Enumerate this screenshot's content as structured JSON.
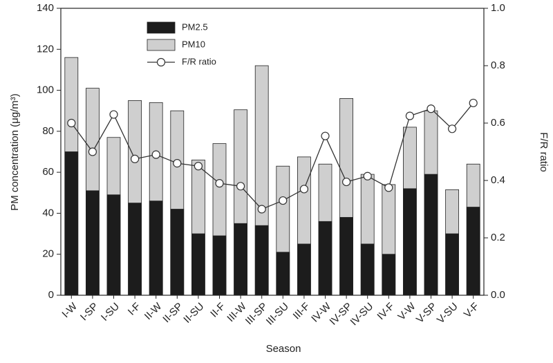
{
  "chart_data": {
    "type": "bar",
    "x_label": "Season",
    "y_label": "PM concentration (μg/m³)",
    "y2_label": "F/R ratio",
    "categories": [
      "I-W",
      "I-SP",
      "I-SU",
      "I-F",
      "II-W",
      "II-SP",
      "II-SU",
      "II-F",
      "III-W",
      "III-SP",
      "III-SU",
      "III-F",
      "IV-W",
      "IV-SP",
      "IV-SU",
      "IV-F",
      "V-W",
      "V-SP",
      "V-SU",
      "V-F"
    ],
    "series": [
      {
        "name": "PM2.5",
        "type": "bar",
        "color": "#1c1c1c",
        "values": [
          70,
          51,
          49,
          45,
          46,
          42,
          30,
          29,
          35,
          34,
          21,
          25,
          36,
          38,
          25,
          20,
          52,
          59,
          30,
          43
        ]
      },
      {
        "name": "PM10",
        "type": "bar",
        "color": "#cfcfcf",
        "values": [
          116,
          101,
          77,
          95,
          94,
          90,
          66,
          74,
          90.5,
          112,
          63,
          67.5,
          64,
          96,
          59,
          54,
          82,
          90,
          51.5,
          64
        ]
      },
      {
        "name": "F/R ratio",
        "type": "line",
        "axis": "y2",
        "color": "#333333",
        "values": [
          0.6,
          0.5,
          0.63,
          0.475,
          0.49,
          0.46,
          0.45,
          0.39,
          0.38,
          0.3,
          0.33,
          0.37,
          0.555,
          0.395,
          0.415,
          0.375,
          0.625,
          0.65,
          0.58,
          0.67
        ]
      }
    ],
    "ylim": [
      0,
      140
    ],
    "yticks": [
      0,
      20,
      40,
      60,
      80,
      100,
      120,
      140
    ],
    "y2lim": [
      0,
      1
    ],
    "y2ticks": [
      {
        "value": 0,
        "label": "0.0"
      },
      0.2,
      0.4,
      0.6,
      0.8,
      {
        "value": 1,
        "label": "1.0"
      }
    ],
    "legend": "top-left",
    "grid": false
  }
}
